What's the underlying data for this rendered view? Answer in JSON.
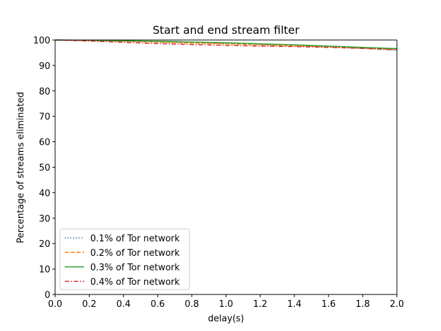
{
  "chart_data": {
    "type": "line",
    "title": "Start and end stream filter",
    "xlabel": "delay(s)",
    "ylabel": "Percentage of streams eliminated",
    "xlim": [
      0.0,
      2.0
    ],
    "ylim": [
      0,
      100
    ],
    "xticks": [
      0.0,
      0.2,
      0.4,
      0.6,
      0.8,
      1.0,
      1.2,
      1.4,
      1.6,
      1.8,
      2.0
    ],
    "xtick_labels": [
      "0.0",
      "0.2",
      "0.4",
      "0.6",
      "0.8",
      "1.0",
      "1.2",
      "1.4",
      "1.6",
      "1.8",
      "2.0"
    ],
    "yticks": [
      0,
      10,
      20,
      30,
      40,
      50,
      60,
      70,
      80,
      90,
      100
    ],
    "ytick_labels": [
      "0",
      "10",
      "20",
      "30",
      "40",
      "50",
      "60",
      "70",
      "80",
      "90",
      "100"
    ],
    "grid": false,
    "legend_position": "lower-left",
    "x": [
      0.0,
      0.2,
      0.4,
      0.6,
      0.8,
      1.0,
      1.2,
      1.4,
      1.6,
      1.8,
      2.0
    ],
    "series": [
      {
        "name": "0.1% of Tor network",
        "color": "#1f77b4",
        "style": "dotted",
        "values": [
          100,
          99.8,
          99.6,
          99.3,
          99.0,
          98.6,
          98.2,
          97.8,
          97.3,
          96.7,
          96.0
        ]
      },
      {
        "name": "0.2% of Tor network",
        "color": "#ff7f0e",
        "style": "dashed",
        "values": [
          100,
          99.8,
          99.5,
          99.2,
          98.8,
          98.5,
          98.1,
          97.7,
          97.3,
          96.8,
          96.3
        ]
      },
      {
        "name": "0.3% of Tor network",
        "color": "#2ca02c",
        "style": "solid",
        "values": [
          100,
          99.9,
          99.7,
          99.5,
          99.2,
          98.9,
          98.5,
          98.1,
          97.6,
          97.1,
          96.6
        ]
      },
      {
        "name": "0.4% of Tor network",
        "color": "#d62728",
        "style": "dashdot",
        "values": [
          100,
          99.6,
          99.1,
          98.6,
          98.2,
          97.9,
          97.6,
          97.4,
          97.1,
          96.7,
          96.2
        ]
      }
    ]
  }
}
